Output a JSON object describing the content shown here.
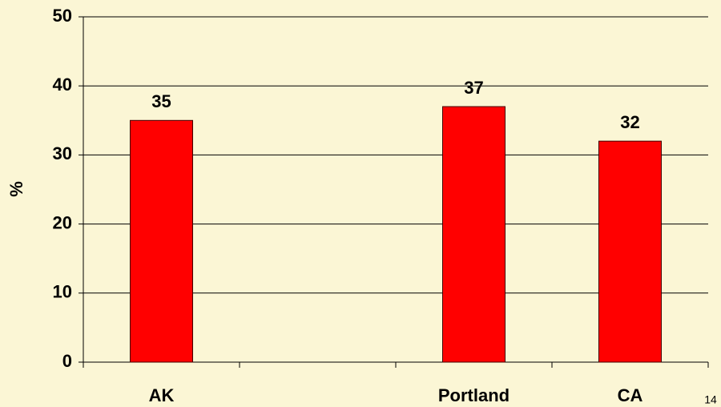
{
  "chart_data": {
    "type": "bar",
    "y_label": "%",
    "categories": [
      "AK",
      null,
      "Portland",
      "CA"
    ],
    "values": [
      35,
      null,
      37,
      32
    ],
    "color": "#ff0000",
    "ylim": [
      0,
      50
    ],
    "yticks": [
      0,
      10,
      20,
      30,
      40,
      50
    ],
    "grid": true,
    "value_labels_shown": true
  },
  "slide_number": "14"
}
